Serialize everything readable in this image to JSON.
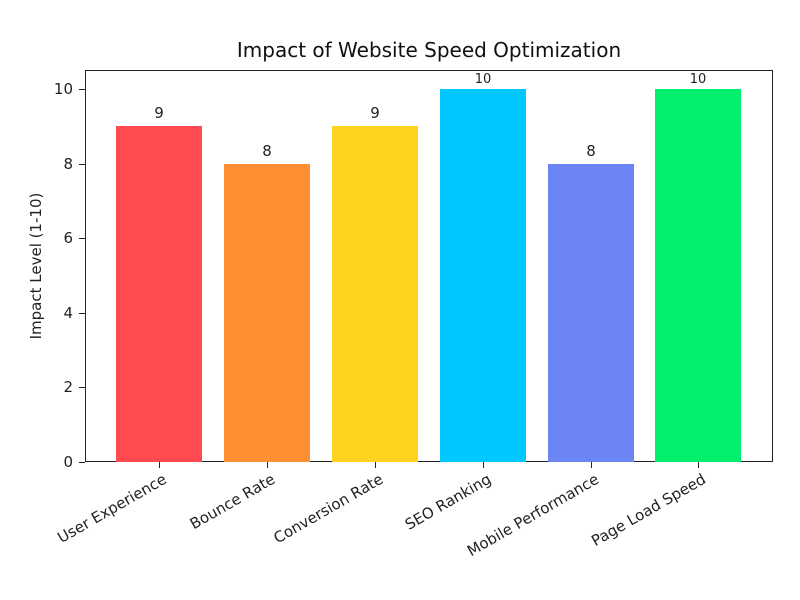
{
  "chart_data": {
    "type": "bar",
    "title": "Impact of Website Speed Optimization",
    "xlabel": "",
    "ylabel": "Impact Level (1-10)",
    "ylim": [
      0,
      10.5
    ],
    "yticks": [
      "0",
      "2",
      "4",
      "6",
      "8",
      "10"
    ],
    "grid": false,
    "legend": null,
    "categories": [
      "User Experience",
      "Bounce Rate",
      "Conversion Rate",
      "SEO Ranking",
      "Mobile Performance",
      "Page Load Speed"
    ],
    "values": [
      9,
      8,
      9,
      10,
      8,
      10
    ],
    "data_labels": [
      "9",
      "8",
      "9",
      "10",
      "8",
      "10"
    ],
    "colors": [
      "#ff4a4f",
      "#ff8f33",
      "#ffd21f",
      "#00c7ff",
      "#6b85f5",
      "#00f06e"
    ]
  }
}
